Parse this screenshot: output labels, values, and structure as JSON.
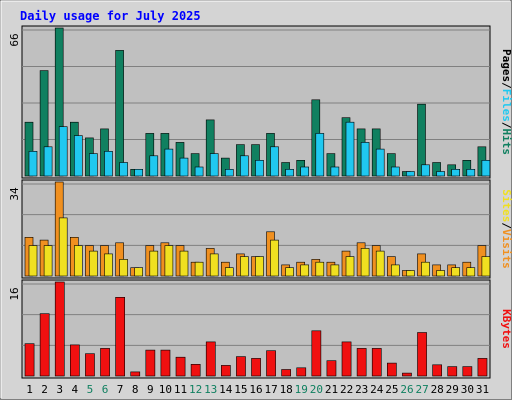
{
  "chart_data": {
    "type": "bar",
    "title": "Daily usage for July 2025",
    "categories": [
      "1",
      "2",
      "3",
      "4",
      "5",
      "6",
      "7",
      "8",
      "9",
      "10",
      "11",
      "12",
      "13",
      "14",
      "15",
      "16",
      "17",
      "18",
      "19",
      "20",
      "21",
      "22",
      "23",
      "24",
      "25",
      "26",
      "27",
      "28",
      "29",
      "30",
      "31"
    ],
    "weekend_days": [
      "5",
      "6",
      "12",
      "13",
      "19",
      "20",
      "26",
      "27"
    ],
    "panels": [
      {
        "max_label": "66",
        "ylim": [
          0,
          66
        ],
        "right_labels": [
          "Pages",
          "Files",
          "Hits"
        ],
        "series": [
          {
            "name": "Hits",
            "color": "#108060",
            "values": [
              24,
              47,
              66,
              24,
              17,
              21,
              56,
              3,
              19,
              19,
              15,
              10,
              25,
              8,
              14,
              14,
              19,
              6,
              7,
              34,
              10,
              26,
              21,
              21,
              10,
              2,
              32,
              6,
              5,
              7,
              13
            ]
          },
          {
            "name": "Files",
            "color": "#20c8f0",
            "values": [
              11,
              13,
              22,
              18,
              10,
              11,
              6,
              3,
              9,
              12,
              8,
              4,
              10,
              3,
              9,
              7,
              13,
              3,
              4,
              19,
              4,
              24,
              15,
              12,
              4,
              2,
              5,
              2,
              3,
              3,
              7
            ]
          }
        ]
      },
      {
        "max_label": "34",
        "ylim": [
          0,
          34
        ],
        "right_labels": [
          "Sites",
          "Visits"
        ],
        "series": [
          {
            "name": "Visits",
            "color": "#f09020",
            "values": [
              14,
              13,
              34,
              14,
              11,
              11,
              12,
              3,
              11,
              12,
              11,
              5,
              10,
              5,
              8,
              7,
              16,
              4,
              5,
              6,
              5,
              9,
              12,
              11,
              7,
              2,
              8,
              4,
              4,
              5,
              11
            ]
          },
          {
            "name": "Sites",
            "color": "#f0e020",
            "values": [
              11,
              11,
              21,
              11,
              9,
              8,
              6,
              3,
              9,
              11,
              9,
              5,
              8,
              3,
              7,
              7,
              13,
              3,
              4,
              5,
              4,
              7,
              10,
              9,
              4,
              2,
              5,
              2,
              3,
              3,
              7
            ]
          }
        ]
      },
      {
        "max_label": "16",
        "ylim": [
          0,
          16
        ],
        "right_labels": [
          "KBytes"
        ],
        "series": [
          {
            "name": "KBytes",
            "color": "#f01010",
            "values": [
              5.5,
              10.6,
              16,
              5.3,
              3.8,
              4.7,
              13.4,
              0.7,
              4.4,
              4.4,
              3.2,
              2.0,
              5.8,
              1.8,
              3.3,
              3.0,
              4.3,
              1.1,
              1.4,
              7.7,
              2.6,
              5.8,
              4.7,
              4.7,
              2.2,
              0.5,
              7.4,
              1.9,
              1.6,
              1.6,
              3.0
            ]
          }
        ]
      }
    ]
  },
  "colors": {
    "plot_bg": "#c0c0c0",
    "frame": "#d4d4d4",
    "title_text": "#0000ff",
    "weekday_label": "#000000",
    "weekend_label": "#108060",
    "separator": "#000000",
    "grid": "#808080"
  }
}
